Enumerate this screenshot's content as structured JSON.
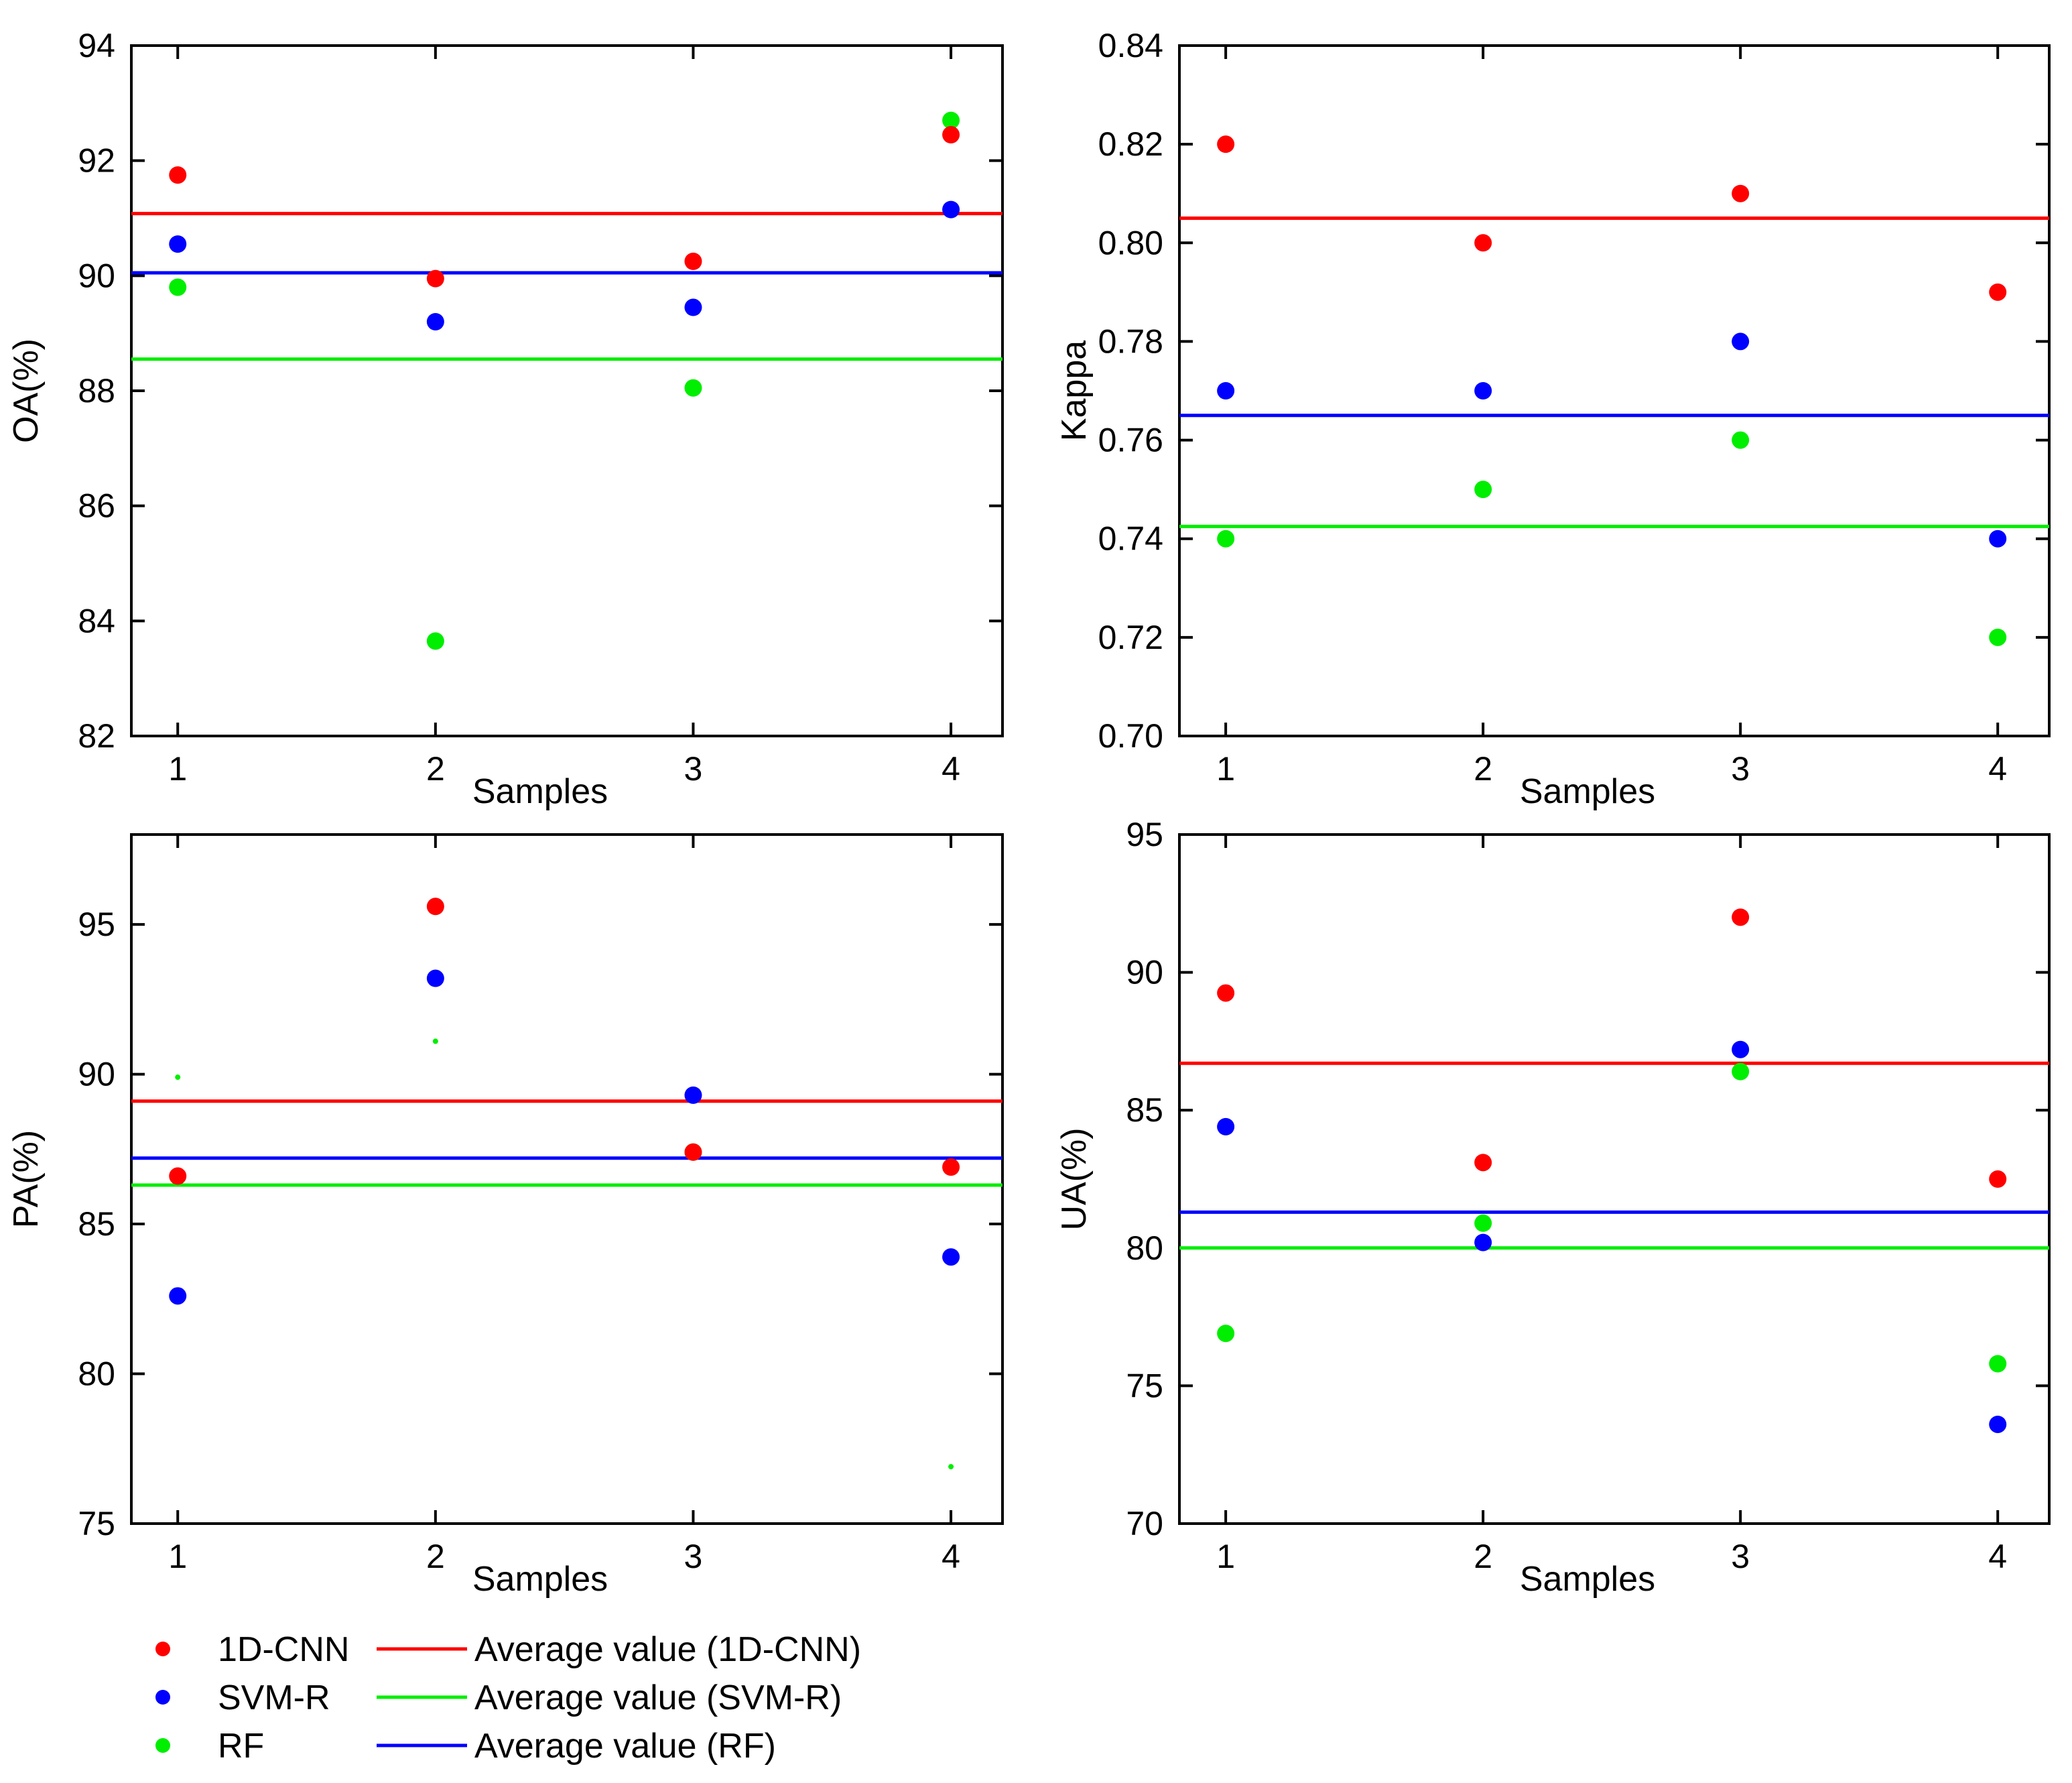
{
  "legend": [
    {
      "kind": "marker",
      "label": "1D-CNN",
      "color": "#ff0000"
    },
    {
      "kind": "marker",
      "label": "SVM-R",
      "color": "#0000ff"
    },
    {
      "kind": "marker",
      "label": "RF",
      "color": "#00ee00"
    },
    {
      "kind": "line",
      "label": "Average value (1D-CNN)",
      "color": "#ff0000"
    },
    {
      "kind": "line",
      "label": "Average value (SVM-R)",
      "color": "#00ee00"
    },
    {
      "kind": "line",
      "label": "Average value (RF)",
      "color": "#0000ff"
    }
  ],
  "chart_data": [
    {
      "type": "scatter",
      "xlabel": "Samples",
      "ylabel": "OA(%)",
      "x": [
        1,
        2,
        3,
        4
      ],
      "xlim": [
        0.82,
        4.2
      ],
      "ylim": [
        82,
        94
      ],
      "yticks": [
        82,
        84,
        86,
        88,
        90,
        92,
        94
      ],
      "ytick_labels": [
        "82",
        "84",
        "86",
        "88",
        "90",
        "92",
        "94"
      ],
      "series": [
        {
          "name": "1D-CNN",
          "color": "#ff0000",
          "values": [
            91.75,
            89.95,
            90.25,
            92.45
          ]
        },
        {
          "name": "SVM-R",
          "color": "#0000ff",
          "values": [
            90.55,
            89.2,
            89.45,
            91.15
          ]
        },
        {
          "name": "RF",
          "color": "#00ee00",
          "values": [
            89.8,
            83.65,
            88.05,
            92.7
          ]
        }
      ],
      "averages": [
        {
          "name": "Average value (1D-CNN)",
          "color": "#ff0000",
          "value": 91.08
        },
        {
          "name": "Average value (RF)",
          "color": "#0000ff",
          "value": 90.05
        },
        {
          "name": "Average value (SVM-R)",
          "color": "#00ee00",
          "value": 88.55
        }
      ]
    },
    {
      "type": "scatter",
      "xlabel": "Samples",
      "ylabel": "Kappa",
      "x": [
        1,
        2,
        3,
        4
      ],
      "xlim": [
        0.82,
        4.2
      ],
      "ylim": [
        0.7,
        0.84
      ],
      "yticks": [
        0.7,
        0.72,
        0.74,
        0.76,
        0.78,
        0.8,
        0.82,
        0.84
      ],
      "ytick_labels": [
        "0.70",
        "0.72",
        "0.74",
        "0.76",
        "0.78",
        "0.80",
        "0.82",
        "0.84"
      ],
      "series": [
        {
          "name": "1D-CNN",
          "color": "#ff0000",
          "values": [
            0.82,
            0.8,
            0.81,
            0.79
          ]
        },
        {
          "name": "SVM-R",
          "color": "#0000ff",
          "values": [
            0.77,
            0.77,
            0.78,
            0.74
          ]
        },
        {
          "name": "RF",
          "color": "#00ee00",
          "values": [
            0.74,
            0.75,
            0.76,
            0.72
          ]
        }
      ],
      "averages": [
        {
          "name": "Average value (1D-CNN)",
          "color": "#ff0000",
          "value": 0.805
        },
        {
          "name": "Average value (RF)",
          "color": "#0000ff",
          "value": 0.765
        },
        {
          "name": "Average value (SVM-R)",
          "color": "#00ee00",
          "value": 0.7425
        }
      ]
    },
    {
      "type": "scatter",
      "xlabel": "Samples",
      "ylabel": "PA(%)",
      "x": [
        1,
        2,
        3,
        4
      ],
      "xlim": [
        0.82,
        4.2
      ],
      "ylim": [
        75,
        98
      ],
      "yticks": [
        75,
        80,
        85,
        90,
        95
      ],
      "ytick_labels": [
        "75",
        "80",
        "85",
        "90",
        "95"
      ],
      "series": [
        {
          "name": "1D-CNN",
          "color": "#ff0000",
          "values": [
            86.6,
            95.6,
            87.4,
            86.9
          ]
        },
        {
          "name": "SVM-R",
          "color": "#0000ff",
          "values": [
            82.6,
            93.2,
            89.3,
            83.9
          ]
        },
        {
          "name": "RF",
          "color": "#00ee00",
          "values": [
            89.9,
            91.1,
            87.4,
            76.9
          ],
          "small": [
            true,
            true,
            false,
            true
          ]
        }
      ],
      "averages": [
        {
          "name": "Average value (1D-CNN)",
          "color": "#ff0000",
          "value": 89.1
        },
        {
          "name": "Average value (RF)",
          "color": "#0000ff",
          "value": 87.2
        },
        {
          "name": "Average value (SVM-R)",
          "color": "#00ee00",
          "value": 86.3
        }
      ]
    },
    {
      "type": "scatter",
      "xlabel": "Samples",
      "ylabel": "UA(%)",
      "x": [
        1,
        2,
        3,
        4
      ],
      "xlim": [
        0.82,
        4.2
      ],
      "ylim": [
        70,
        95
      ],
      "yticks": [
        70,
        75,
        80,
        85,
        90,
        95
      ],
      "ytick_labels": [
        "70",
        "75",
        "80",
        "85",
        "90",
        "95"
      ],
      "series": [
        {
          "name": "1D-CNN",
          "color": "#ff0000",
          "values": [
            89.25,
            83.1,
            92.0,
            82.5
          ]
        },
        {
          "name": "SVM-R",
          "color": "#0000ff",
          "values": [
            84.4,
            80.2,
            87.2,
            73.6
          ]
        },
        {
          "name": "RF",
          "color": "#00ee00",
          "values": [
            76.9,
            80.9,
            86.4,
            75.8
          ]
        }
      ],
      "averages": [
        {
          "name": "Average value (1D-CNN)",
          "color": "#ff0000",
          "value": 86.7
        },
        {
          "name": "Average value (RF)",
          "color": "#0000ff",
          "value": 81.3
        },
        {
          "name": "Average value (SVM-R)",
          "color": "#00ee00",
          "value": 80.0
        }
      ]
    }
  ]
}
